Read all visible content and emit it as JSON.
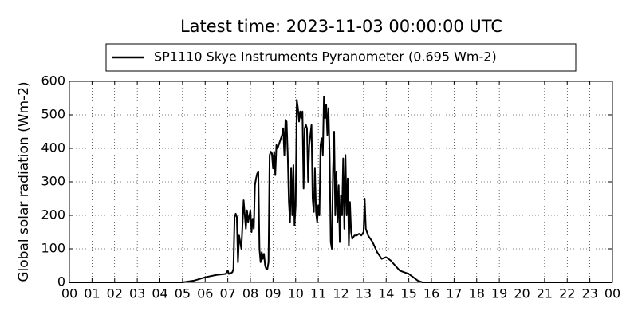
{
  "chart_data": {
    "type": "line",
    "title": "Latest time: 2023-11-03 00:00:00 UTC",
    "y_label": "Global solar radiation (Wm-2)",
    "xlim": [
      0,
      24
    ],
    "ylim": [
      0,
      600
    ],
    "yticks": [
      0,
      100,
      200,
      300,
      400,
      500,
      600
    ],
    "xticks": [
      {
        "value": 0,
        "label": "00"
      },
      {
        "value": 1,
        "label": "01"
      },
      {
        "value": 2,
        "label": "02"
      },
      {
        "value": 3,
        "label": "03"
      },
      {
        "value": 4,
        "label": "04"
      },
      {
        "value": 5,
        "label": "05"
      },
      {
        "value": 6,
        "label": "06"
      },
      {
        "value": 7,
        "label": "07"
      },
      {
        "value": 8,
        "label": "08"
      },
      {
        "value": 9,
        "label": "09"
      },
      {
        "value": 10,
        "label": "10"
      },
      {
        "value": 11,
        "label": "11"
      },
      {
        "value": 12,
        "label": "12"
      },
      {
        "value": 13,
        "label": "13"
      },
      {
        "value": 14,
        "label": "14"
      },
      {
        "value": 15,
        "label": "15"
      },
      {
        "value": 16,
        "label": "16"
      },
      {
        "value": 17,
        "label": "17"
      },
      {
        "value": 18,
        "label": "18"
      },
      {
        "value": 19,
        "label": "19"
      },
      {
        "value": 20,
        "label": "20"
      },
      {
        "value": 21,
        "label": "21"
      },
      {
        "value": 22,
        "label": "22"
      },
      {
        "value": 23,
        "label": "23"
      },
      {
        "value": 24,
        "label": "00"
      }
    ],
    "grid": true,
    "legend": "top",
    "x": [
      0,
      5.0,
      5.5,
      6.0,
      6.5,
      6.9,
      7.0,
      7.05,
      7.15,
      7.2,
      7.25,
      7.3,
      7.35,
      7.4,
      7.45,
      7.5,
      7.6,
      7.7,
      7.8,
      7.85,
      7.9,
      8.0,
      8.05,
      8.1,
      8.15,
      8.2,
      8.25,
      8.3,
      8.35,
      8.4,
      8.45,
      8.5,
      8.55,
      8.6,
      8.65,
      8.7,
      8.75,
      8.8,
      8.85,
      8.9,
      8.95,
      9.0,
      9.05,
      9.1,
      9.15,
      9.2,
      9.3,
      9.4,
      9.45,
      9.5,
      9.55,
      9.6,
      9.65,
      9.7,
      9.75,
      9.8,
      9.85,
      9.9,
      9.95,
      10.0,
      10.05,
      10.1,
      10.15,
      10.2,
      10.25,
      10.3,
      10.35,
      10.4,
      10.45,
      10.5,
      10.55,
      10.6,
      10.7,
      10.75,
      10.8,
      10.85,
      10.9,
      10.95,
      11.0,
      11.05,
      11.1,
      11.15,
      11.2,
      11.25,
      11.3,
      11.35,
      11.4,
      11.45,
      11.5,
      11.55,
      11.6,
      11.65,
      11.7,
      11.75,
      11.8,
      11.85,
      11.9,
      11.95,
      12.0,
      12.05,
      12.1,
      12.15,
      12.2,
      12.25,
      12.3,
      12.35,
      12.4,
      12.45,
      12.5,
      12.6,
      12.7,
      12.8,
      12.9,
      13.0,
      13.05,
      13.1,
      13.2,
      13.4,
      13.6,
      13.8,
      14.0,
      14.2,
      14.4,
      14.6,
      14.8,
      15.0,
      15.2,
      15.4,
      15.6,
      24
    ],
    "series": [
      {
        "name": "SP1110 Skye Instruments Pyranometer (0.695 Wm-2)",
        "color": "#000000",
        "values": [
          0,
          0,
          5,
          15,
          22,
          25,
          35,
          25,
          28,
          30,
          40,
          195,
          205,
          195,
          60,
          140,
          100,
          245,
          160,
          215,
          180,
          215,
          150,
          190,
          160,
          290,
          310,
          325,
          330,
          100,
          60,
          90,
          70,
          85,
          50,
          40,
          40,
          60,
          380,
          390,
          385,
          340,
          390,
          320,
          410,
          400,
          420,
          440,
          460,
          380,
          485,
          480,
          380,
          240,
          180,
          340,
          200,
          350,
          170,
          230,
          545,
          520,
          480,
          510,
          490,
          510,
          280,
          460,
          470,
          460,
          300,
          410,
          470,
          250,
          210,
          340,
          210,
          180,
          230,
          200,
          410,
          430,
          380,
          555,
          490,
          530,
          440,
          520,
          380,
          120,
          100,
          330,
          450,
          200,
          330,
          180,
          290,
          120,
          260,
          200,
          370,
          160,
          380,
          200,
          310,
          110,
          240,
          150,
          130,
          140,
          140,
          145,
          140,
          150,
          250,
          160,
          140,
          120,
          90,
          70,
          75,
          65,
          50,
          35,
          30,
          25,
          15,
          5,
          0,
          0
        ]
      }
    ]
  }
}
